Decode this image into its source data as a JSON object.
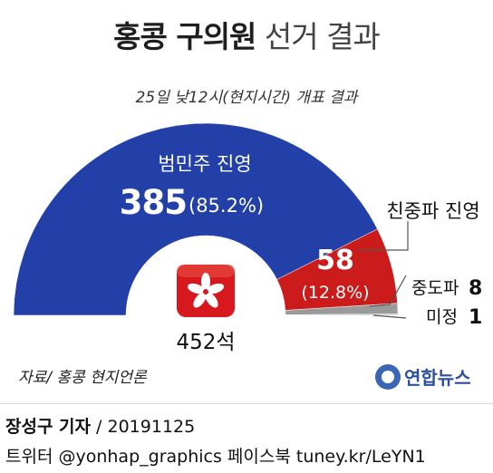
{
  "title_bold": "홍콩 구의원",
  "title_light": "선거 결과",
  "subtitle": "25일 낮12시(현지시간) 개표 결과",
  "total_label": "452석",
  "source": "자료/ 홍콩 현지언론",
  "logo_text": "연합뉴스",
  "reporter_name": "장성구 기자",
  "reporter_date": " / 20191125",
  "sns": "트위터 @yonhap_graphics  페이스북 tuney.kr/LeYN1",
  "colors": {
    "pro_democracy": "#2340a8",
    "pro_beijing": "#cc1b1b",
    "neutral": "#9a9a9a",
    "undecided": "#c8c8c8",
    "logo": "#3a66b5"
  },
  "chart_data": {
    "type": "pie",
    "shape": "half-donut",
    "total": 452,
    "slices": [
      {
        "label": "범민주 진영",
        "value": 385,
        "percent_text": "(85.2%)",
        "color": "#2340a8"
      },
      {
        "label": "친중파 진영",
        "value": 58,
        "percent_text": "(12.8%)",
        "color": "#cc1b1b"
      },
      {
        "label": "중도파",
        "value": 8,
        "color": "#9a9a9a"
      },
      {
        "label": "미정",
        "value": 1,
        "color": "#c8c8c8"
      }
    ]
  }
}
